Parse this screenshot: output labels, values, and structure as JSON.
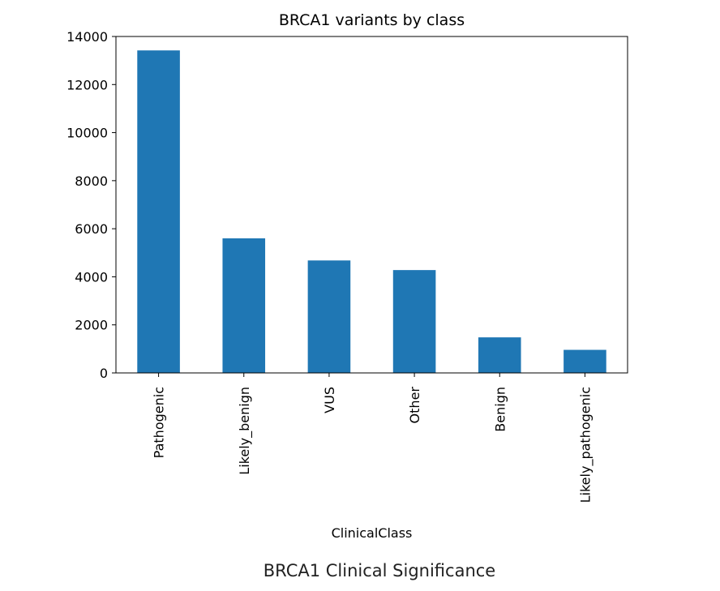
{
  "chart_data": {
    "type": "bar",
    "title": "BRCA1 variants by class",
    "xlabel": "ClinicalClass",
    "ylabel": "",
    "categories": [
      "Pathogenic",
      "Likely_benign",
      "VUS",
      "Other",
      "Benign",
      "Likely_pathogenic"
    ],
    "values": [
      13420,
      5600,
      4680,
      4280,
      1480,
      960
    ],
    "ylim": [
      0,
      14000
    ],
    "yticks": [
      "0",
      "2000",
      "4000",
      "6000",
      "8000",
      "10000",
      "12000",
      "14000"
    ],
    "bar_color": "#1f77b4",
    "grid": false,
    "legend": "none"
  },
  "caption": "BRCA1 Clinical Significance"
}
